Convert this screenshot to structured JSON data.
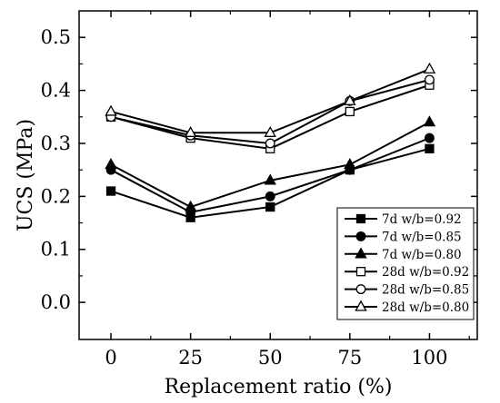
{
  "chart_data": {
    "type": "line",
    "title": "",
    "xlabel": "Replacement ratio (%)",
    "ylabel": "UCS (MPa)",
    "x": [
      0,
      25,
      50,
      75,
      100
    ],
    "xlim": [
      -10,
      115
    ],
    "ylim": [
      -0.07,
      0.55
    ],
    "xticks": [
      "0",
      "25",
      "50",
      "75",
      "100"
    ],
    "yticks": [
      "0.0",
      "0.1",
      "0.2",
      "0.3",
      "0.4",
      "0.5"
    ],
    "grid": false,
    "legend_position": "bottom-right",
    "series": [
      {
        "name": "7d   w/b=0.92",
        "marker": "square-filled",
        "values": [
          0.21,
          0.16,
          0.18,
          0.25,
          0.29
        ]
      },
      {
        "name": "7d   w/b=0.85",
        "marker": "circle-filled",
        "values": [
          0.25,
          0.17,
          0.2,
          0.25,
          0.31
        ]
      },
      {
        "name": "7d   w/b=0.80",
        "marker": "triangle-filled",
        "values": [
          0.26,
          0.18,
          0.23,
          0.26,
          0.34
        ]
      },
      {
        "name": "28d w/b=0.92",
        "marker": "square-open",
        "values": [
          0.35,
          0.31,
          0.29,
          0.36,
          0.41
        ]
      },
      {
        "name": "28d w/b=0.85",
        "marker": "circle-open",
        "values": [
          0.35,
          0.315,
          0.3,
          0.38,
          0.42
        ]
      },
      {
        "name": "28d w/b=0.80",
        "marker": "triangle-open",
        "values": [
          0.36,
          0.32,
          0.32,
          0.38,
          0.44
        ]
      }
    ]
  }
}
